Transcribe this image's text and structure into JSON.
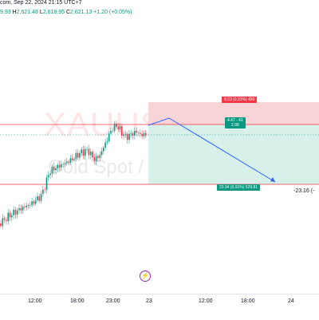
{
  "header": {
    "source_line": "com, Sep 22, 2024 21:15 UTC+7",
    "ohlc": {
      "open": "9.93",
      "high_label": "H",
      "high": "2,621.48",
      "low_label": "L",
      "low": "2,618.95",
      "close_label": "C",
      "close": "2,621.13",
      "change": "+1.20 (+0.05%)"
    }
  },
  "watermark": {
    "symbol": "XAUUSD, 15",
    "description": "Gold Spot / U.S. Dollar"
  },
  "position": {
    "type": "short",
    "stop_label": "8.03 (0.31%) 490",
    "entry_label_line1": "4.47 - 41",
    "entry_label_line2": "2.98",
    "target_label": "23.94 (0.91%) 529.81",
    "side_value": "-23.16 (-"
  },
  "time_axis": {
    "ticks": [
      "12:00",
      "18:00",
      "23:00",
      "23",
      "12:00",
      "18:00",
      "24"
    ]
  },
  "colors": {
    "up": "#089981",
    "down": "#f23645",
    "stop_zone": "#f9d4d6",
    "target_zone": "#d8f0ea",
    "level_line": "#f23645",
    "projection": "#2962ff"
  },
  "icons": {
    "alert": "lightning-icon"
  }
}
